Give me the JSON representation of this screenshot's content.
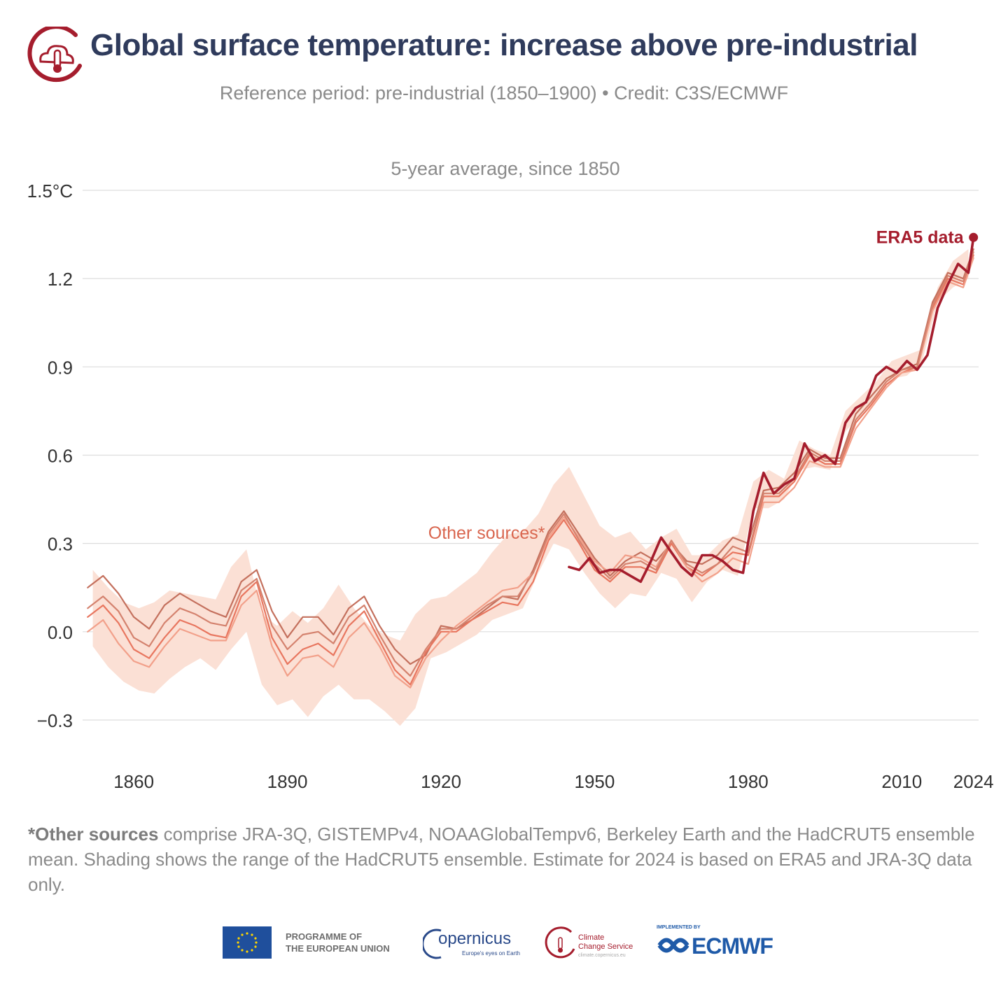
{
  "header": {
    "title": "Global surface temperature: increase above pre-industrial",
    "subtitle": "Reference period: pre-industrial (1850–1900) • Credit: C3S/ECMWF",
    "logo_icon": "c3s-thermometer-cloud-icon"
  },
  "chart_data": {
    "type": "line",
    "title": "5-year average, since 1850",
    "xlabel": "",
    "ylabel": "",
    "xlim": [
      1850,
      2025
    ],
    "ylim": [
      -0.35,
      1.5
    ],
    "x_ticks": [
      1860,
      1890,
      1920,
      1950,
      1980,
      2010,
      2024
    ],
    "x_tick_labels": [
      "1860",
      "1890",
      "1920",
      "1950",
      "1980",
      "2010",
      "2024"
    ],
    "y_ticks": [
      -0.3,
      0.0,
      0.3,
      0.6,
      0.9,
      1.2,
      1.5
    ],
    "y_tick_labels": [
      "−0.3",
      "0.0",
      "0.3",
      "0.6",
      "0.9",
      "1.2",
      "1.5°C"
    ],
    "grid": true,
    "annotations": [
      {
        "text": "ERA5 data",
        "x": 2024,
        "y": 1.34,
        "color": "#a51d2d"
      },
      {
        "text": "Other sources*",
        "x": 1930,
        "y": 0.33,
        "color": "#d9664f"
      }
    ],
    "colors": {
      "era5": "#a51d2d",
      "other_1": "#c4705d",
      "other_2": "#e8765f",
      "other_3": "#f2a08a",
      "other_4": "#d4826e",
      "shading": "#fbe0d5"
    },
    "shading_range": {
      "x": [
        1852,
        1855,
        1858,
        1861,
        1864,
        1867,
        1870,
        1873,
        1876,
        1879,
        1882,
        1885,
        1888,
        1891,
        1894,
        1897,
        1900,
        1903,
        1906,
        1909,
        1912,
        1915,
        1918,
        1921,
        1924,
        1927,
        1930,
        1933,
        1936,
        1939,
        1942,
        1945,
        1948,
        1951,
        1954,
        1957,
        1960,
        1963,
        1966,
        1969,
        1972,
        1975,
        1978,
        1981,
        1984,
        1987,
        1990,
        1993,
        1996,
        1999,
        2002,
        2005,
        2008,
        2011,
        2014,
        2017,
        2020,
        2023
      ],
      "lower": [
        -0.05,
        -0.12,
        -0.17,
        -0.2,
        -0.21,
        -0.16,
        -0.12,
        -0.09,
        -0.13,
        -0.06,
        0.0,
        -0.18,
        -0.25,
        -0.23,
        -0.29,
        -0.22,
        -0.18,
        -0.23,
        -0.23,
        -0.27,
        -0.32,
        -0.26,
        -0.09,
        -0.07,
        -0.04,
        -0.01,
        0.04,
        0.06,
        0.08,
        0.2,
        0.3,
        0.28,
        0.2,
        0.13,
        0.08,
        0.13,
        0.12,
        0.2,
        0.18,
        0.1,
        0.17,
        0.21,
        0.19,
        0.42,
        0.42,
        0.45,
        0.55,
        0.56,
        0.55,
        0.68,
        0.74,
        0.79,
        0.86,
        0.87,
        0.92,
        1.12,
        1.17,
        1.2
      ],
      "upper": [
        0.21,
        0.15,
        0.1,
        0.08,
        0.1,
        0.14,
        0.13,
        0.12,
        0.11,
        0.22,
        0.28,
        0.06,
        0.02,
        0.07,
        0.03,
        0.08,
        0.16,
        0.08,
        0.02,
        -0.01,
        -0.03,
        0.06,
        0.11,
        0.12,
        0.16,
        0.2,
        0.27,
        0.33,
        0.34,
        0.4,
        0.5,
        0.56,
        0.46,
        0.36,
        0.32,
        0.34,
        0.28,
        0.32,
        0.35,
        0.26,
        0.26,
        0.31,
        0.33,
        0.51,
        0.55,
        0.52,
        0.65,
        0.62,
        0.6,
        0.75,
        0.8,
        0.85,
        0.92,
        0.94,
        0.96,
        1.17,
        1.26,
        1.3
      ]
    },
    "series": [
      {
        "key": "era5",
        "name": "ERA5 data",
        "x": [
          1945,
          1947,
          1949,
          1951,
          1953,
          1955,
          1957,
          1959,
          1961,
          1963,
          1965,
          1967,
          1969,
          1971,
          1973,
          1975,
          1977,
          1979,
          1981,
          1983,
          1985,
          1987,
          1989,
          1991,
          1993,
          1995,
          1997,
          1999,
          2001,
          2003,
          2005,
          2007,
          2009,
          2011,
          2013,
          2015,
          2017,
          2019,
          2021,
          2023,
          2024
        ],
        "y": [
          0.22,
          0.21,
          0.25,
          0.2,
          0.21,
          0.21,
          0.19,
          0.17,
          0.24,
          0.32,
          0.27,
          0.22,
          0.19,
          0.26,
          0.26,
          0.24,
          0.21,
          0.2,
          0.41,
          0.54,
          0.47,
          0.5,
          0.52,
          0.64,
          0.58,
          0.6,
          0.57,
          0.71,
          0.76,
          0.78,
          0.87,
          0.9,
          0.88,
          0.92,
          0.89,
          0.94,
          1.1,
          1.18,
          1.25,
          1.22,
          1.34
        ]
      },
      {
        "key": "other_1",
        "x": [
          1851,
          1854,
          1857,
          1860,
          1863,
          1866,
          1869,
          1872,
          1875,
          1878,
          1881,
          1884,
          1887,
          1890,
          1893,
          1896,
          1899,
          1902,
          1905,
          1908,
          1911,
          1914,
          1917,
          1920,
          1923,
          1926,
          1929,
          1932,
          1935,
          1938,
          1941,
          1944,
          1947,
          1950,
          1953,
          1956,
          1959,
          1962,
          1965,
          1968,
          1971,
          1974,
          1977,
          1980,
          1983,
          1986,
          1989,
          1992,
          1995,
          1998,
          2001,
          2004,
          2007,
          2010,
          2013,
          2016,
          2019,
          2022,
          2024
        ],
        "y": [
          0.15,
          0.19,
          0.13,
          0.05,
          0.01,
          0.09,
          0.13,
          0.1,
          0.07,
          0.05,
          0.17,
          0.21,
          0.07,
          -0.02,
          0.05,
          0.05,
          -0.01,
          0.08,
          0.12,
          0.02,
          -0.06,
          -0.11,
          -0.08,
          0.02,
          0.01,
          0.04,
          0.08,
          0.12,
          0.11,
          0.21,
          0.34,
          0.41,
          0.33,
          0.25,
          0.19,
          0.24,
          0.27,
          0.24,
          0.3,
          0.24,
          0.23,
          0.26,
          0.32,
          0.3,
          0.48,
          0.49,
          0.54,
          0.62,
          0.59,
          0.59,
          0.74,
          0.8,
          0.86,
          0.89,
          0.91,
          1.12,
          1.22,
          1.2,
          1.3
        ]
      },
      {
        "key": "other_2",
        "x": [
          1851,
          1854,
          1857,
          1860,
          1863,
          1866,
          1869,
          1872,
          1875,
          1878,
          1881,
          1884,
          1887,
          1890,
          1893,
          1896,
          1899,
          1902,
          1905,
          1908,
          1911,
          1914,
          1917,
          1920,
          1923,
          1926,
          1929,
          1932,
          1935,
          1938,
          1941,
          1944,
          1947,
          1950,
          1953,
          1956,
          1959,
          1962,
          1965,
          1968,
          1971,
          1974,
          1977,
          1980,
          1983,
          1986,
          1989,
          1992,
          1995,
          1998,
          2001,
          2004,
          2007,
          2010,
          2013,
          2016,
          2019,
          2022,
          2024
        ],
        "y": [
          0.05,
          0.09,
          0.03,
          -0.06,
          -0.09,
          -0.02,
          0.04,
          0.02,
          -0.01,
          -0.02,
          0.12,
          0.17,
          -0.02,
          -0.11,
          -0.06,
          -0.04,
          -0.08,
          0.02,
          0.07,
          -0.03,
          -0.13,
          -0.18,
          -0.07,
          0.0,
          0.0,
          0.04,
          0.07,
          0.1,
          0.09,
          0.17,
          0.31,
          0.38,
          0.3,
          0.21,
          0.17,
          0.22,
          0.22,
          0.2,
          0.3,
          0.22,
          0.19,
          0.23,
          0.27,
          0.26,
          0.46,
          0.46,
          0.51,
          0.6,
          0.57,
          0.57,
          0.71,
          0.77,
          0.84,
          0.88,
          0.9,
          1.1,
          1.2,
          1.18,
          1.28
        ]
      },
      {
        "key": "other_3",
        "x": [
          1851,
          1854,
          1857,
          1860,
          1863,
          1866,
          1869,
          1872,
          1875,
          1878,
          1881,
          1884,
          1887,
          1890,
          1893,
          1896,
          1899,
          1902,
          1905,
          1908,
          1911,
          1914,
          1917,
          1920,
          1923,
          1926,
          1929,
          1932,
          1935,
          1938,
          1941,
          1944,
          1947,
          1950,
          1953,
          1956,
          1959,
          1962,
          1965,
          1968,
          1971,
          1974,
          1977,
          1980,
          1983,
          1986,
          1989,
          1992,
          1995,
          1998,
          2001,
          2004,
          2007,
          2010,
          2013,
          2016,
          2019,
          2022,
          2024
        ],
        "y": [
          0.0,
          0.04,
          -0.04,
          -0.1,
          -0.12,
          -0.05,
          0.01,
          -0.01,
          -0.03,
          -0.03,
          0.09,
          0.14,
          -0.05,
          -0.15,
          -0.09,
          -0.08,
          -0.12,
          -0.02,
          0.03,
          -0.05,
          -0.15,
          -0.19,
          -0.09,
          -0.03,
          0.02,
          0.06,
          0.1,
          0.14,
          0.15,
          0.2,
          0.32,
          0.39,
          0.32,
          0.24,
          0.2,
          0.26,
          0.25,
          0.22,
          0.31,
          0.22,
          0.17,
          0.2,
          0.25,
          0.23,
          0.44,
          0.44,
          0.49,
          0.58,
          0.56,
          0.56,
          0.69,
          0.76,
          0.83,
          0.88,
          0.89,
          1.09,
          1.19,
          1.17,
          1.27
        ]
      },
      {
        "key": "other_4",
        "x": [
          1851,
          1854,
          1857,
          1860,
          1863,
          1866,
          1869,
          1872,
          1875,
          1878,
          1881,
          1884,
          1887,
          1890,
          1893,
          1896,
          1899,
          1902,
          1905,
          1908,
          1911,
          1914,
          1917,
          1920,
          1923,
          1926,
          1929,
          1932,
          1935,
          1938,
          1941,
          1944,
          1947,
          1950,
          1953,
          1956,
          1959,
          1962,
          1965,
          1968,
          1971,
          1974,
          1977,
          1980,
          1983,
          1986,
          1989,
          1992,
          1995,
          1998,
          2001,
          2004,
          2007,
          2010,
          2013,
          2016,
          2019,
          2022,
          2024
        ],
        "y": [
          0.08,
          0.12,
          0.07,
          -0.02,
          -0.05,
          0.03,
          0.08,
          0.06,
          0.03,
          0.02,
          0.14,
          0.18,
          0.02,
          -0.06,
          -0.01,
          0.0,
          -0.04,
          0.05,
          0.09,
          -0.01,
          -0.1,
          -0.15,
          -0.06,
          0.01,
          0.01,
          0.05,
          0.09,
          0.12,
          0.12,
          0.2,
          0.33,
          0.4,
          0.31,
          0.23,
          0.18,
          0.23,
          0.24,
          0.21,
          0.31,
          0.23,
          0.2,
          0.23,
          0.29,
          0.27,
          0.47,
          0.47,
          0.52,
          0.61,
          0.58,
          0.58,
          0.72,
          0.78,
          0.85,
          0.89,
          0.9,
          1.11,
          1.21,
          1.19,
          1.29
        ]
      }
    ]
  },
  "footnote": {
    "marker": "*",
    "bold_term": "Other sources",
    "text": " comprise JRA-3Q, GISTEMPv4, NOAAGlobalTempv6, Berkeley Earth and the HadCRUT5 ensemble mean. Shading shows the range of the HadCRUT5 ensemble. Estimate for 2024 is based on ERA5 and JRA-3Q data only."
  },
  "logos": {
    "eu_line1": "PROGRAMME OF",
    "eu_line2": "THE EUROPEAN UNION",
    "copernicus": "opernicus",
    "copernicus_sub": "Europe's eyes on Earth",
    "c3s_line1": "Climate",
    "c3s_line2": "Change Service",
    "c3s_sub": "climate.copernicus.eu",
    "ecmwf_small": "IMPLEMENTED BY",
    "ecmwf": "ECMWF"
  }
}
